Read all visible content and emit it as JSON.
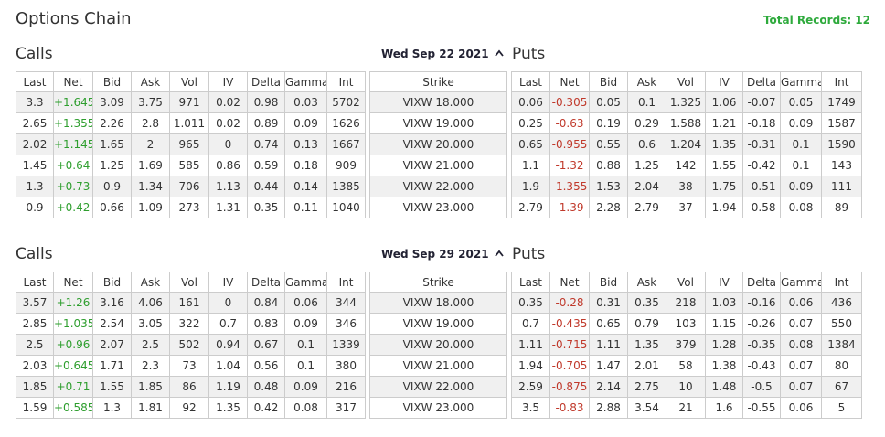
{
  "title": "Options Chain",
  "total_records": "Total Records: 12",
  "sections": [
    {
      "calls_label": "Calls",
      "date": "Wed Sep 22 2021",
      "puts_label": "Puts",
      "calls": {
        "headers": [
          "Last",
          "Net",
          "Bid",
          "Ask",
          "Vol",
          "IV",
          "Delta",
          "Gamma",
          "Int"
        ],
        "rows": [
          [
            "3.3",
            "+1.645",
            "3.09",
            "3.75",
            "971",
            "0.02",
            "0.98",
            "0.03",
            "5702"
          ],
          [
            "2.65",
            "+1.355",
            "2.26",
            "2.8",
            "1.011",
            "0.02",
            "0.89",
            "0.09",
            "1626"
          ],
          [
            "2.02",
            "+1.145",
            "1.65",
            "2",
            "965",
            "0",
            "0.74",
            "0.13",
            "1667"
          ],
          [
            "1.45",
            "+0.64",
            "1.25",
            "1.69",
            "585",
            "0.86",
            "0.59",
            "0.18",
            "909"
          ],
          [
            "1.3",
            "+0.73",
            "0.9",
            "1.34",
            "706",
            "1.13",
            "0.44",
            "0.14",
            "1385"
          ],
          [
            "0.9",
            "+0.42",
            "0.66",
            "1.09",
            "273",
            "1.31",
            "0.35",
            "0.11",
            "1040"
          ]
        ]
      },
      "strike": {
        "header": "Strike",
        "rows": [
          "VIXW 18.000",
          "VIXW 19.000",
          "VIXW 20.000",
          "VIXW 21.000",
          "VIXW 22.000",
          "VIXW 23.000"
        ]
      },
      "puts": {
        "headers": [
          "Last",
          "Net",
          "Bid",
          "Ask",
          "Vol",
          "IV",
          "Delta",
          "Gamma",
          "Int"
        ],
        "rows": [
          [
            "0.06",
            "-0.305",
            "0.05",
            "0.1",
            "1.325",
            "1.06",
            "-0.07",
            "0.05",
            "1749"
          ],
          [
            "0.25",
            "-0.63",
            "0.19",
            "0.29",
            "1.588",
            "1.21",
            "-0.18",
            "0.09",
            "1587"
          ],
          [
            "0.65",
            "-0.955",
            "0.55",
            "0.6",
            "1.204",
            "1.35",
            "-0.31",
            "0.1",
            "1590"
          ],
          [
            "1.1",
            "-1.32",
            "0.88",
            "1.25",
            "142",
            "1.55",
            "-0.42",
            "0.1",
            "143"
          ],
          [
            "1.9",
            "-1.355",
            "1.53",
            "2.04",
            "38",
            "1.75",
            "-0.51",
            "0.09",
            "111"
          ],
          [
            "2.79",
            "-1.39",
            "2.28",
            "2.79",
            "37",
            "1.94",
            "-0.58",
            "0.08",
            "89"
          ]
        ]
      }
    },
    {
      "calls_label": "Calls",
      "date": "Wed Sep 29 2021",
      "puts_label": "Puts",
      "calls": {
        "headers": [
          "Last",
          "Net",
          "Bid",
          "Ask",
          "Vol",
          "IV",
          "Delta",
          "Gamma",
          "Int"
        ],
        "rows": [
          [
            "3.57",
            "+1.26",
            "3.16",
            "4.06",
            "161",
            "0",
            "0.84",
            "0.06",
            "344"
          ],
          [
            "2.85",
            "+1.035",
            "2.54",
            "3.05",
            "322",
            "0.7",
            "0.83",
            "0.09",
            "346"
          ],
          [
            "2.5",
            "+0.96",
            "2.07",
            "2.5",
            "502",
            "0.94",
            "0.67",
            "0.1",
            "1339"
          ],
          [
            "2.03",
            "+0.645",
            "1.71",
            "2.3",
            "73",
            "1.04",
            "0.56",
            "0.1",
            "380"
          ],
          [
            "1.85",
            "+0.71",
            "1.55",
            "1.85",
            "86",
            "1.19",
            "0.48",
            "0.09",
            "216"
          ],
          [
            "1.59",
            "+0.585",
            "1.3",
            "1.81",
            "92",
            "1.35",
            "0.42",
            "0.08",
            "317"
          ]
        ]
      },
      "strike": {
        "header": "Strike",
        "rows": [
          "VIXW 18.000",
          "VIXW 19.000",
          "VIXW 20.000",
          "VIXW 21.000",
          "VIXW 22.000",
          "VIXW 23.000"
        ]
      },
      "puts": {
        "headers": [
          "Last",
          "Net",
          "Bid",
          "Ask",
          "Vol",
          "IV",
          "Delta",
          "Gamma",
          "Int"
        ],
        "rows": [
          [
            "0.35",
            "-0.28",
            "0.31",
            "0.35",
            "218",
            "1.03",
            "-0.16",
            "0.06",
            "436"
          ],
          [
            "0.7",
            "-0.435",
            "0.65",
            "0.79",
            "103",
            "1.15",
            "-0.26",
            "0.07",
            "550"
          ],
          [
            "1.11",
            "-0.715",
            "1.11",
            "1.35",
            "379",
            "1.28",
            "-0.35",
            "0.08",
            "1384"
          ],
          [
            "1.94",
            "-0.705",
            "1.47",
            "2.01",
            "58",
            "1.38",
            "-0.43",
            "0.07",
            "80"
          ],
          [
            "2.59",
            "-0.875",
            "2.14",
            "2.75",
            "10",
            "1.48",
            "-0.5",
            "0.07",
            "67"
          ],
          [
            "3.5",
            "-0.83",
            "2.88",
            "3.54",
            "21",
            "1.6",
            "-0.55",
            "0.06",
            "5"
          ]
        ]
      }
    }
  ]
}
